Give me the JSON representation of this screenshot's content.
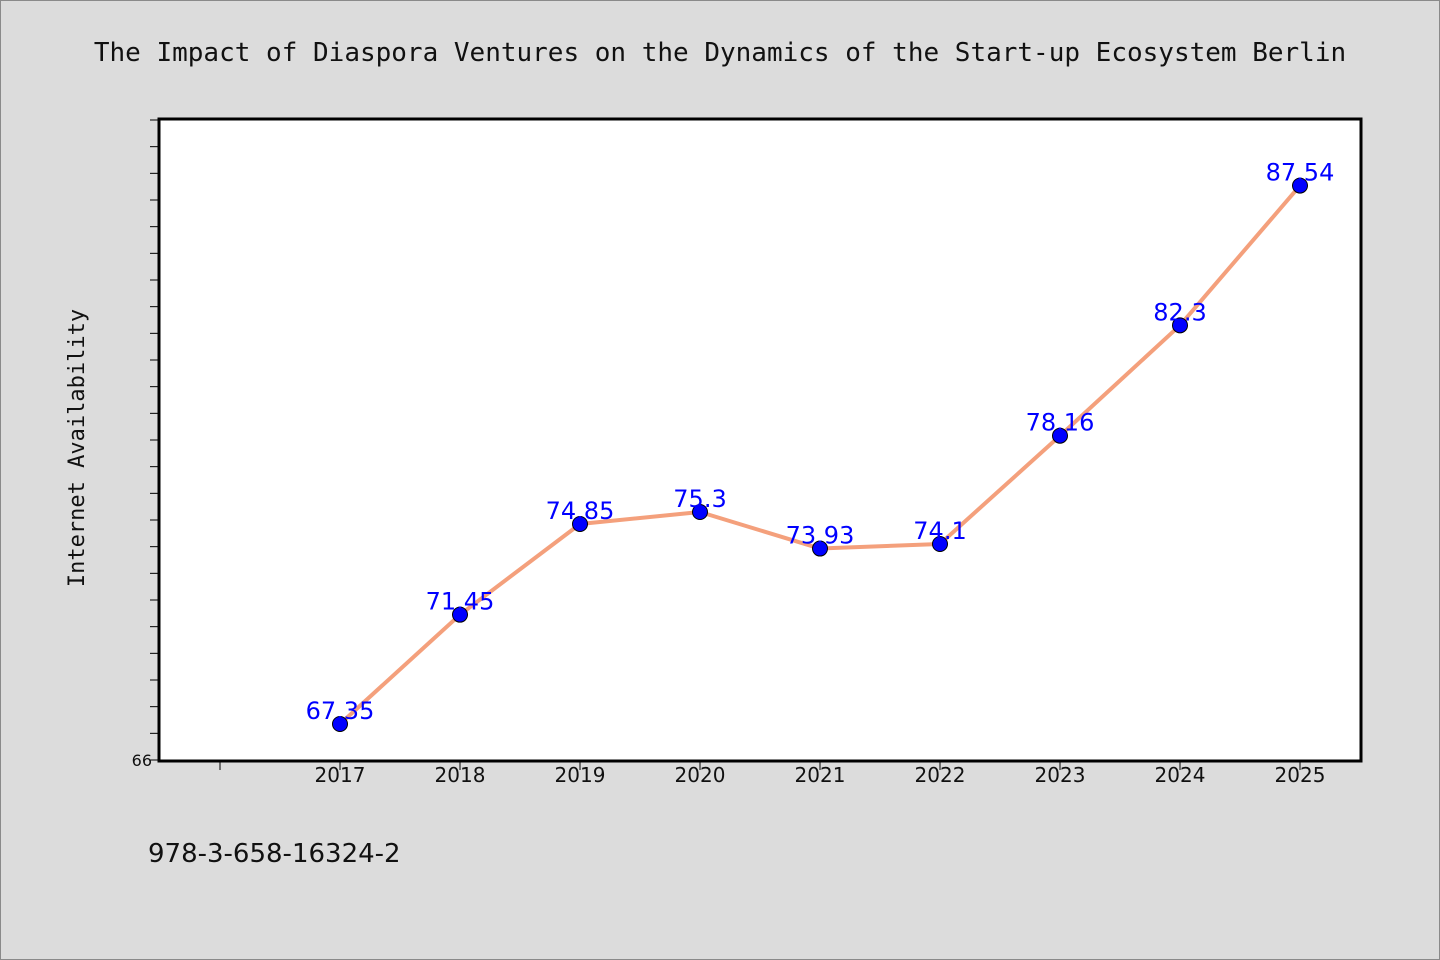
{
  "chart_data": {
    "type": "line",
    "title": "The Impact of Diaspora Ventures on the Dynamics of the Start-up Ecosystem Berlin",
    "xlabel": "",
    "ylabel": "Internet Availability",
    "categories": [
      "2017",
      "2018",
      "2019",
      "2020",
      "2021",
      "2022",
      "2023",
      "2024",
      "2025"
    ],
    "series": [
      {
        "values": [
          67.35,
          71.45,
          74.85,
          75.3,
          73.93,
          74.1,
          78.16,
          82.3,
          87.54
        ],
        "data_labels": [
          "67.35",
          "71.45",
          "74.85",
          "75.3",
          "73.93",
          "74.1",
          "78.16",
          "82.3",
          "87.54"
        ],
        "line_color": "#f4a07c",
        "marker_color": "#0000ff",
        "label_color": "#0000ff"
      }
    ],
    "ylim": [
      66,
      90
    ],
    "ytick_labels": [
      "66"
    ],
    "grid": false,
    "legend": "none"
  },
  "footer": {
    "isbn": "978-3-658-16324-2"
  },
  "colors": {
    "background": "#dcdcdc",
    "plot_background": "#ffffff",
    "axis": "#000000"
  }
}
